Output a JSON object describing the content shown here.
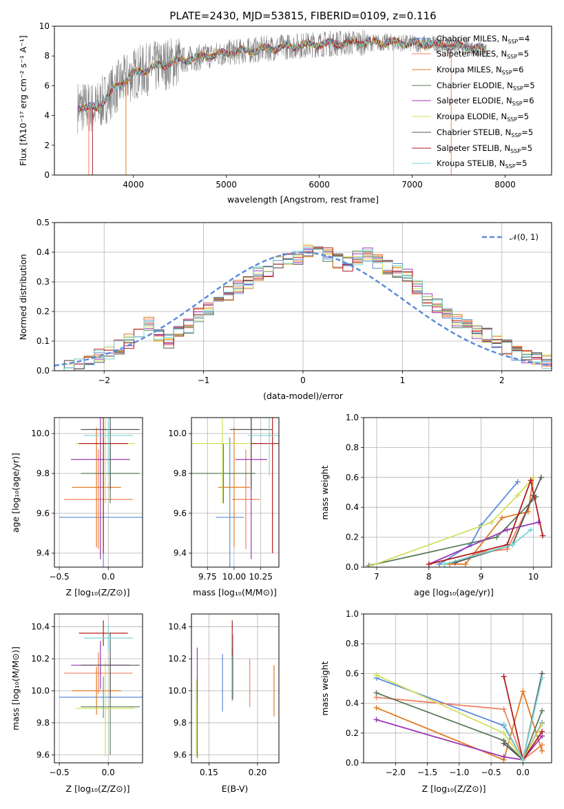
{
  "colors": {
    "Chabrier MILES": "#5b8bd9",
    "Salpeter MILES": "#f07f5f",
    "Kroupa MILES": "#e07a1f",
    "Chabrier ELODIE": "#5a7a5a",
    "Salpeter ELODIE": "#9a36b5",
    "Kroupa ELODIE": "#cfe05a",
    "Chabrier STELIB": "#555555",
    "Salpeter STELIB": "#b01c1c",
    "Kroupa STELIB": "#79d6d6",
    "spectrum_obs": "#808080",
    "grid": "#b0b0b0"
  },
  "chart_data": [
    {
      "type": "line",
      "title": "PLATE=2430, MJD=53815, FIBERID=0109, z=0.116",
      "xlabel": "wavelength [Angstrom, rest frame]",
      "ylabel": "Flux [fλ10⁻¹⁷ erg cm⁻² s⁻¹ A⁻¹]",
      "xlim": [
        3150,
        8500
      ],
      "ylim": [
        0,
        10
      ],
      "xticks": [
        "4000",
        "5000",
        "6000",
        "7000",
        "8000"
      ],
      "yticks": [
        "0",
        "2",
        "4",
        "6",
        "8",
        "10"
      ],
      "legend_position": "right",
      "series": [
        {
          "name": "Chabrier MILES, N_SSP=4",
          "label": "Chabrier MILES, N",
          "nssp": "=4"
        },
        {
          "name": "Salpeter MILES, N_SSP=5",
          "label": "Salpeter MILES, N",
          "nssp": "=5"
        },
        {
          "name": "Kroupa MILES, N_SSP=6",
          "label": "Kroupa MILES, N",
          "nssp": "=6"
        },
        {
          "name": "Chabrier ELODIE, N_SSP=5",
          "label": "Chabrier ELODIE, N",
          "nssp": "=5"
        },
        {
          "name": "Salpeter ELODIE, N_SSP=6",
          "label": "Salpeter ELODIE, N",
          "nssp": "=6"
        },
        {
          "name": "Kroupa ELODIE, N_SSP=5",
          "label": "Kroupa ELODIE, N",
          "nssp": "=5"
        },
        {
          "name": "Chabrier STELIB, N_SSP=5",
          "label": "Chabrier STELIB, N",
          "nssp": "=5"
        },
        {
          "name": "Salpeter STELIB, N_SSP=5",
          "label": "Salpeter STELIB, N",
          "nssp": "=5"
        },
        {
          "name": "Kroupa STELIB, N_SSP=5",
          "label": "Kroupa STELIB, N",
          "nssp": "=5"
        }
      ],
      "continuum": {
        "x": [
          3400,
          3600,
          3800,
          4000,
          4200,
          4500,
          4800,
          5000,
          5300,
          5600,
          6000,
          6400,
          6800,
          7200,
          7600,
          7800
        ],
        "y": [
          4.6,
          4.5,
          5.8,
          6.8,
          7.2,
          7.7,
          8.0,
          8.2,
          8.4,
          8.6,
          8.8,
          8.9,
          8.9,
          8.8,
          8.6,
          8.4
        ]
      }
    },
    {
      "type": "bar",
      "xlabel": "(data-model)/error",
      "ylabel": "Normed distribution",
      "xlim": [
        -2.5,
        2.5
      ],
      "ylim": [
        0,
        0.5
      ],
      "xticks": [
        "−2",
        "−1",
        "0",
        "1",
        "2"
      ],
      "yticks": [
        "0.0",
        "0.1",
        "0.2",
        "0.3",
        "0.4",
        "0.5"
      ],
      "legend": "𝒩(0, 1)",
      "legend_position": "top-right",
      "reference": {
        "name": "N(0,1)",
        "mean": 0,
        "sigma": 1
      },
      "bin_width": 0.1,
      "bin_start": -2.5,
      "values": [
        0.02,
        0.02,
        0.03,
        0.04,
        0.05,
        0.06,
        0.08,
        0.1,
        0.12,
        0.16,
        0.12,
        0.1,
        0.13,
        0.15,
        0.19,
        0.21,
        0.24,
        0.26,
        0.28,
        0.3,
        0.33,
        0.34,
        0.36,
        0.37,
        0.38,
        0.4,
        0.4,
        0.39,
        0.37,
        0.36,
        0.38,
        0.39,
        0.37,
        0.35,
        0.34,
        0.32,
        0.28,
        0.24,
        0.22,
        0.2,
        0.17,
        0.16,
        0.13,
        0.12,
        0.1,
        0.08,
        0.06,
        0.05,
        0.04,
        0.03
      ]
    },
    {
      "type": "scatter",
      "xlabel": "Z [log₁₀(Z/Z⊙)]",
      "ylabel": "age  [log₁₀(age/yr)]",
      "xlim": [
        -0.55,
        0.35
      ],
      "ylim": [
        9.33,
        10.08
      ],
      "xticks": [
        "−0.5",
        "0.0"
      ],
      "yticks": [
        "9.4",
        "9.6",
        "9.8",
        "10.0"
      ],
      "points": [
        {
          "model": "Chabrier MILES",
          "x": -0.05,
          "xerr": 0.45,
          "y": 9.58,
          "yerr": 0.4
        },
        {
          "model": "Salpeter MILES",
          "x": -0.1,
          "xerr": 0.35,
          "y": 9.67,
          "yerr": 0.25
        },
        {
          "model": "Kroupa MILES",
          "x": -0.12,
          "xerr": 0.25,
          "y": 9.73,
          "yerr": 0.3
        },
        {
          "model": "Chabrier ELODIE",
          "x": 0.02,
          "xerr": 0.3,
          "y": 9.8,
          "yerr": 0.15
        },
        {
          "model": "Salpeter ELODIE",
          "x": -0.08,
          "xerr": 0.3,
          "y": 9.87,
          "yerr": 0.5
        },
        {
          "model": "Kroupa ELODIE",
          "x": -0.03,
          "xerr": 0.3,
          "y": 9.95,
          "yerr": 0.3
        },
        {
          "model": "Chabrier STELIB",
          "x": 0.02,
          "xerr": 0.3,
          "y": 10.02,
          "yerr": 0.3
        },
        {
          "model": "Salpeter STELIB",
          "x": -0.05,
          "xerr": 0.25,
          "y": 9.95,
          "yerr": 0.55
        },
        {
          "model": "Kroupa STELIB",
          "x": 0.0,
          "xerr": 0.25,
          "y": 9.99,
          "yerr": 0.2
        }
      ]
    },
    {
      "type": "scatter",
      "xlabel": "mass [log₁₀(M/M⊙)]",
      "ylabel": "",
      "xlim": [
        9.6,
        10.42
      ],
      "ylim": [
        9.33,
        10.08
      ],
      "xticks": [
        "9.75",
        "10.00",
        "10.25"
      ],
      "yticks": [
        "9.4",
        "9.6",
        "9.8",
        "10.0"
      ],
      "points": [
        {
          "model": "Chabrier MILES",
          "x": 9.96,
          "xerr": 0.13,
          "y": 9.58,
          "yerr": 0.4
        },
        {
          "model": "Salpeter MILES",
          "x": 10.11,
          "xerr": 0.13,
          "y": 9.67,
          "yerr": 0.25
        },
        {
          "model": "Kroupa MILES",
          "x": 10.0,
          "xerr": 0.15,
          "y": 9.73,
          "yerr": 0.3
        },
        {
          "model": "Chabrier ELODIE",
          "x": 9.9,
          "xerr": 0.3,
          "y": 9.8,
          "yerr": 0.15
        },
        {
          "model": "Salpeter ELODIE",
          "x": 10.16,
          "xerr": 0.15,
          "y": 9.87,
          "yerr": 0.5
        },
        {
          "model": "Kroupa ELODIE",
          "x": 9.89,
          "xerr": 0.3,
          "y": 9.95,
          "yerr": 0.3
        },
        {
          "model": "Chabrier STELIB",
          "x": 10.16,
          "xerr": 0.2,
          "y": 10.02,
          "yerr": 0.3
        },
        {
          "model": "Salpeter STELIB",
          "x": 10.36,
          "xerr": 0.2,
          "y": 9.95,
          "yerr": 0.55
        },
        {
          "model": "Kroupa STELIB",
          "x": 10.33,
          "xerr": 0.2,
          "y": 9.99,
          "yerr": 0.2
        }
      ]
    },
    {
      "type": "line",
      "xlabel": "age  [log₁₀(age/yr)]",
      "ylabel": "mass weight",
      "xlim": [
        6.75,
        10.35
      ],
      "ylim": [
        0,
        1
      ],
      "xticks": [
        "7",
        "8",
        "9",
        "10"
      ],
      "yticks": [
        "0.0",
        "0.2",
        "0.4",
        "0.6",
        "0.8",
        "1.0"
      ],
      "series": [
        {
          "model": "Chabrier MILES",
          "x": [
            8.2,
            8.8,
            9.0,
            9.7
          ],
          "y": [
            0.02,
            0.15,
            0.28,
            0.57
          ]
        },
        {
          "model": "Salpeter MILES",
          "x": [
            8.4,
            9.0,
            9.5,
            9.9
          ],
          "y": [
            0.02,
            0.1,
            0.12,
            0.4
          ]
        },
        {
          "model": "Kroupa MILES",
          "x": [
            8.3,
            8.7,
            9.4,
            9.9,
            10.0
          ],
          "y": [
            0.02,
            0.02,
            0.33,
            0.37,
            0.6
          ]
        },
        {
          "model": "Chabrier ELODIE",
          "x": [
            6.85,
            9.3,
            10.05
          ],
          "y": [
            0.01,
            0.2,
            0.47
          ]
        },
        {
          "model": "Salpeter ELODIE",
          "x": [
            8.0,
            9.5,
            10.1
          ],
          "y": [
            0.02,
            0.25,
            0.3
          ]
        },
        {
          "model": "Kroupa ELODIE",
          "x": [
            6.9,
            9.2,
            9.7,
            10.0
          ],
          "y": [
            0.01,
            0.3,
            0.48,
            0.6
          ]
        },
        {
          "model": "Chabrier STELIB",
          "x": [
            8.5,
            9.6,
            10.0,
            10.15
          ],
          "y": [
            0.03,
            0.15,
            0.48,
            0.6
          ]
        },
        {
          "model": "Salpeter STELIB",
          "x": [
            8.0,
            9.5,
            9.95,
            10.18
          ],
          "y": [
            0.02,
            0.15,
            0.58,
            0.21
          ]
        },
        {
          "model": "Kroupa STELIB",
          "x": [
            8.3,
            9.6,
            9.95
          ],
          "y": [
            0.02,
            0.15,
            0.25
          ]
        }
      ]
    },
    {
      "type": "scatter",
      "xlabel": "Z [log₁₀(Z/Z⊙)]",
      "ylabel": "mass [log₁₀(M/M⊙)]",
      "xlim": [
        -0.55,
        0.35
      ],
      "ylim": [
        9.55,
        10.48
      ],
      "xticks": [
        "−0.5",
        "0.0"
      ],
      "yticks": [
        "9.6",
        "9.8",
        "10.0",
        "10.2",
        "10.4"
      ],
      "points": [
        {
          "model": "Chabrier MILES",
          "x": -0.05,
          "xerr": 0.45,
          "y": 9.96,
          "yerr": 0.13
        },
        {
          "model": "Salpeter MILES",
          "x": -0.1,
          "xerr": 0.35,
          "y": 10.11,
          "yerr": 0.13
        },
        {
          "model": "Kroupa MILES",
          "x": -0.12,
          "xerr": 0.25,
          "y": 10.0,
          "yerr": 0.15
        },
        {
          "model": "Chabrier ELODIE",
          "x": 0.02,
          "xerr": 0.3,
          "y": 9.9,
          "yerr": 0.3
        },
        {
          "model": "Salpeter ELODIE",
          "x": -0.08,
          "xerr": 0.3,
          "y": 10.16,
          "yerr": 0.15
        },
        {
          "model": "Kroupa ELODIE",
          "x": -0.03,
          "xerr": 0.3,
          "y": 9.89,
          "yerr": 0.3
        },
        {
          "model": "Chabrier STELIB",
          "x": 0.02,
          "xerr": 0.3,
          "y": 10.16,
          "yerr": 0.2
        },
        {
          "model": "Salpeter STELIB",
          "x": -0.05,
          "xerr": 0.25,
          "y": 10.36,
          "yerr": 0.08
        },
        {
          "model": "Kroupa STELIB",
          "x": 0.0,
          "xerr": 0.25,
          "y": 10.33,
          "yerr": 0.08
        }
      ]
    },
    {
      "type": "scatter",
      "xlabel": "E(B-V)",
      "ylabel": "",
      "xlim": [
        0.132,
        0.222
      ],
      "ylim": [
        9.55,
        10.48
      ],
      "xticks": [
        "0.15",
        "0.20"
      ],
      "yticks": [
        "9.6",
        "9.8",
        "10.0",
        "10.2",
        "10.4"
      ],
      "points": [
        {
          "model": "Chabrier MILES",
          "x": 0.164,
          "y": 10.05,
          "yerr": 0.18
        },
        {
          "model": "Salpeter MILES",
          "x": 0.192,
          "y": 10.05,
          "yerr": 0.15
        },
        {
          "model": "Kroupa MILES",
          "x": 0.217,
          "y": 10.0,
          "yerr": 0.16
        },
        {
          "model": "Chabrier ELODIE",
          "x": 0.138,
          "y": 9.83,
          "yerr": 0.25
        },
        {
          "model": "Salpeter ELODIE",
          "x": 0.138,
          "y": 10.1,
          "yerr": 0.17
        },
        {
          "model": "Kroupa ELODIE",
          "x": 0.137,
          "y": 9.83,
          "yerr": 0.24
        },
        {
          "model": "Chabrier STELIB",
          "x": 0.174,
          "y": 10.1,
          "yerr": 0.16
        },
        {
          "model": "Salpeter STELIB",
          "x": 0.174,
          "y": 10.33,
          "yerr": 0.11
        },
        {
          "model": "Kroupa STELIB",
          "x": 0.175,
          "y": 10.15,
          "yerr": 0.2
        }
      ]
    },
    {
      "type": "line",
      "xlabel": "Z [log₁₀(Z/Z⊙)]",
      "ylabel": "mass weight",
      "xlim": [
        -2.5,
        0.45
      ],
      "ylim": [
        0,
        1
      ],
      "xticks": [
        "−2.0",
        "−1.5",
        "−1.0",
        "−0.5",
        "0.0"
      ],
      "yticks": [
        "0.0",
        "0.2",
        "0.4",
        "0.6",
        "0.8",
        "1.0"
      ],
      "series": [
        {
          "model": "Chabrier MILES",
          "x": [
            -2.3,
            -0.3,
            0.0,
            0.3
          ],
          "y": [
            0.57,
            0.25,
            0.02,
            0.27
          ]
        },
        {
          "model": "Salpeter MILES",
          "x": [
            -2.3,
            -0.3,
            0.0,
            0.3
          ],
          "y": [
            0.44,
            0.36,
            0.02,
            0.12
          ]
        },
        {
          "model": "Kroupa MILES",
          "x": [
            -2.3,
            -0.3,
            0.0,
            0.3
          ],
          "y": [
            0.37,
            0.02,
            0.48,
            0.08
          ]
        },
        {
          "model": "Chabrier ELODIE",
          "x": [
            -2.3,
            -0.3,
            0.0,
            0.3
          ],
          "y": [
            0.47,
            0.15,
            0.02,
            0.35
          ]
        },
        {
          "model": "Salpeter ELODIE",
          "x": [
            -2.3,
            -0.3,
            0.0,
            0.3
          ],
          "y": [
            0.29,
            0.04,
            0.02,
            0.18
          ]
        },
        {
          "model": "Kroupa ELODIE",
          "x": [
            -2.3,
            -0.3,
            0.0,
            0.3
          ],
          "y": [
            0.59,
            0.2,
            0.02,
            0.26
          ]
        },
        {
          "model": "Chabrier STELIB",
          "x": [
            -0.3,
            0.0,
            0.3
          ],
          "y": [
            0.13,
            0.02,
            0.6
          ]
        },
        {
          "model": "Salpeter STELIB",
          "x": [
            -0.3,
            0.0,
            0.3
          ],
          "y": [
            0.58,
            0.02,
            0.21
          ]
        },
        {
          "model": "Kroupa STELIB",
          "x": [
            -0.3,
            0.0,
            0.3
          ],
          "y": [
            0.26,
            0.02,
            0.57
          ]
        }
      ]
    }
  ]
}
